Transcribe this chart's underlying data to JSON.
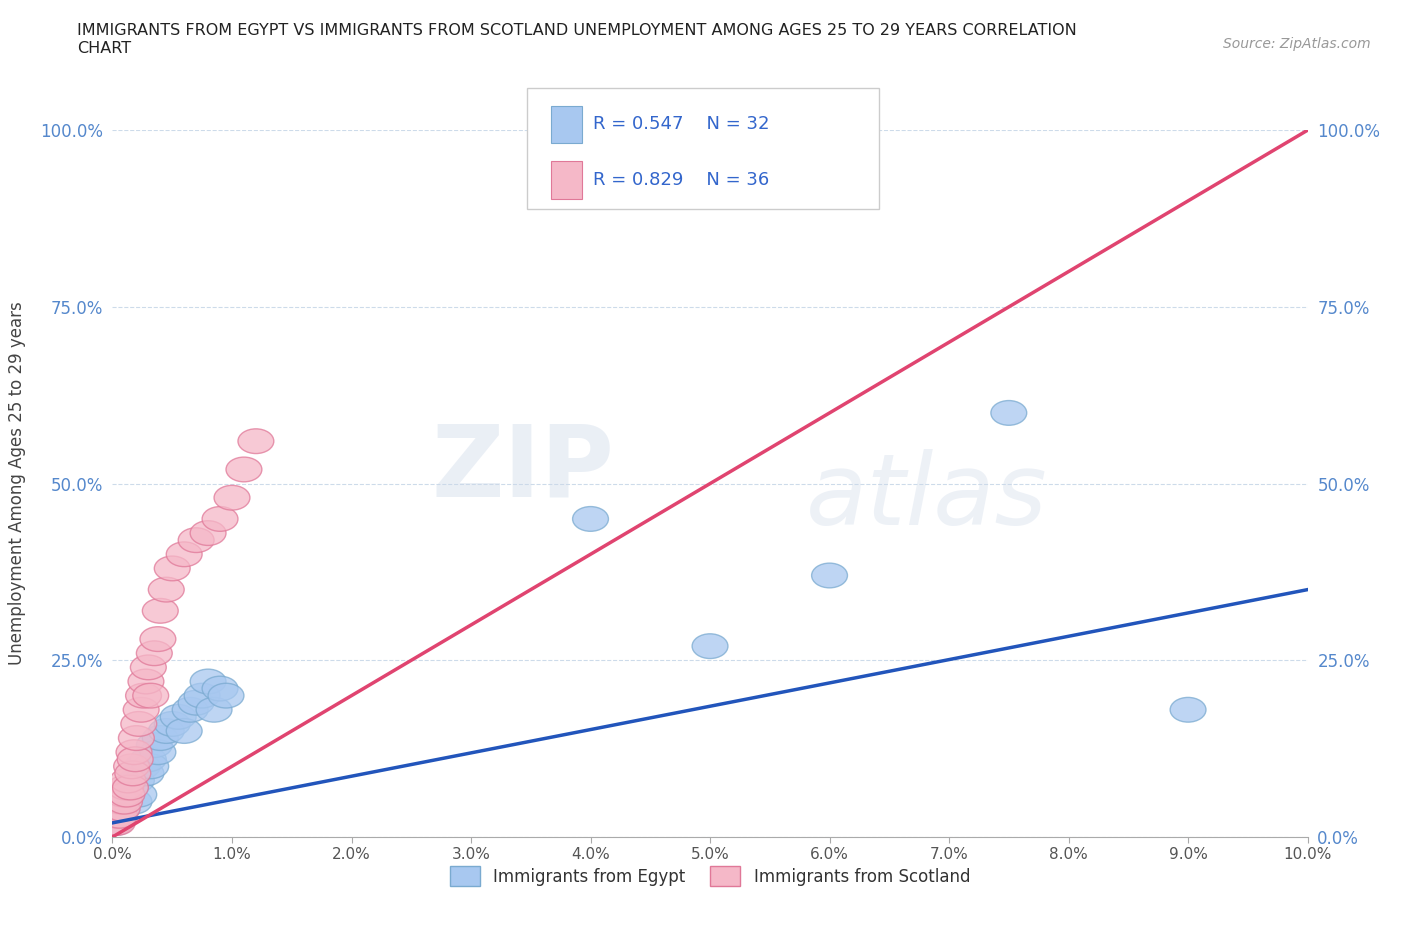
{
  "title": "IMMIGRANTS FROM EGYPT VS IMMIGRANTS FROM SCOTLAND UNEMPLOYMENT AMONG AGES 25 TO 29 YEARS CORRELATION\nCHART",
  "source_text": "Source: ZipAtlas.com",
  "ylabel": "Unemployment Among Ages 25 to 29 years",
  "xlim": [
    0.0,
    0.1
  ],
  "ylim": [
    0.0,
    1.0
  ],
  "xticks": [
    0.0,
    0.01,
    0.02,
    0.03,
    0.04,
    0.05,
    0.06,
    0.07,
    0.08,
    0.09,
    0.1
  ],
  "xticklabels": [
    "0.0%",
    "1.0%",
    "2.0%",
    "3.0%",
    "4.0%",
    "5.0%",
    "6.0%",
    "7.0%",
    "8.0%",
    "9.0%",
    "10.0%"
  ],
  "yticks": [
    0.0,
    0.25,
    0.5,
    0.75,
    1.0
  ],
  "yticklabels": [
    "0.0%",
    "25.0%",
    "50.0%",
    "75.0%",
    "100.0%"
  ],
  "egypt_color": "#a8c8f0",
  "egypt_edge_color": "#7aaad0",
  "scotland_color": "#f5b8c8",
  "scotland_edge_color": "#e07898",
  "egypt_line_color": "#2255bb",
  "scotland_line_color": "#e04470",
  "egypt_R": 0.547,
  "egypt_N": 32,
  "scotland_R": 0.829,
  "scotland_N": 36,
  "background_color": "#ffffff",
  "watermark_zip": "ZIP",
  "watermark_atlas": "atlas",
  "egypt_x": [
    0.0003,
    0.0005,
    0.0008,
    0.001,
    0.0012,
    0.0015,
    0.0018,
    0.002,
    0.0022,
    0.0025,
    0.0028,
    0.003,
    0.0032,
    0.0035,
    0.0038,
    0.004,
    0.0045,
    0.005,
    0.0055,
    0.006,
    0.0065,
    0.007,
    0.0075,
    0.008,
    0.0085,
    0.009,
    0.0095,
    0.04,
    0.05,
    0.06,
    0.075,
    0.09
  ],
  "egypt_y": [
    0.02,
    0.03,
    0.04,
    0.05,
    0.06,
    0.07,
    0.05,
    0.08,
    0.06,
    0.1,
    0.09,
    0.11,
    0.1,
    0.13,
    0.12,
    0.14,
    0.15,
    0.16,
    0.17,
    0.15,
    0.18,
    0.19,
    0.2,
    0.22,
    0.18,
    0.21,
    0.2,
    0.45,
    0.27,
    0.37,
    0.6,
    0.18
  ],
  "scotland_x": [
    0.0002,
    0.0003,
    0.0004,
    0.0005,
    0.0006,
    0.0007,
    0.0008,
    0.0009,
    0.001,
    0.0011,
    0.0012,
    0.0013,
    0.0015,
    0.0016,
    0.0017,
    0.0018,
    0.0019,
    0.002,
    0.0022,
    0.0024,
    0.0026,
    0.0028,
    0.003,
    0.0032,
    0.0035,
    0.0038,
    0.004,
    0.0045,
    0.005,
    0.006,
    0.007,
    0.008,
    0.009,
    0.01,
    0.011,
    0.012
  ],
  "scotland_y": [
    0.02,
    0.03,
    0.02,
    0.04,
    0.03,
    0.05,
    0.04,
    0.06,
    0.05,
    0.07,
    0.06,
    0.08,
    0.07,
    0.1,
    0.09,
    0.12,
    0.11,
    0.14,
    0.16,
    0.18,
    0.2,
    0.22,
    0.24,
    0.2,
    0.26,
    0.28,
    0.32,
    0.35,
    0.38,
    0.4,
    0.42,
    0.43,
    0.45,
    0.48,
    0.52,
    0.56
  ],
  "egypt_line_x0": 0.0,
  "egypt_line_y0": 0.02,
  "egypt_line_x1": 0.1,
  "egypt_line_y1": 0.35,
  "scotland_line_x0": 0.0,
  "scotland_line_y0": 0.0,
  "scotland_line_x1": 0.1,
  "scotland_line_y1": 1.0
}
